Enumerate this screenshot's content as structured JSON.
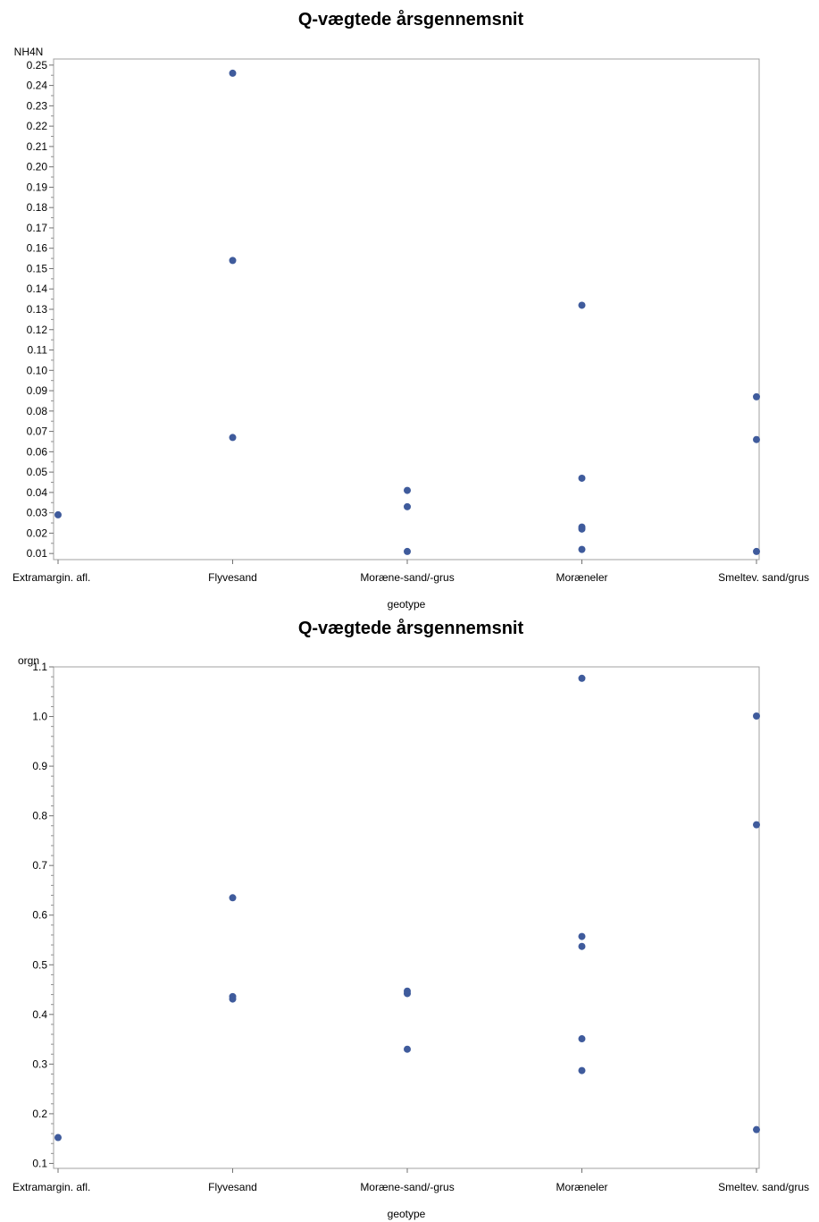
{
  "chart_data": [
    {
      "type": "scatter",
      "title": "Q-vægtede årsgennemsnit",
      "xlabel": "geotype",
      "ylabel": "NH4N",
      "categories": [
        "Extramargin. afl.",
        "Flyvesand",
        "Moræne-sand/-grus",
        "Moræneler",
        "Smeltev. sand/grus"
      ],
      "ylim": [
        0.007,
        0.253
      ],
      "y_ticks": [
        "0.01",
        "0.02",
        "0.03",
        "0.04",
        "0.05",
        "0.06",
        "0.07",
        "0.08",
        "0.09",
        "0.10",
        "0.11",
        "0.12",
        "0.13",
        "0.14",
        "0.15",
        "0.16",
        "0.17",
        "0.18",
        "0.19",
        "0.20",
        "0.21",
        "0.22",
        "0.23",
        "0.24",
        "0.25"
      ],
      "minor_ticks": 1,
      "grid": false,
      "point_color": "#3f5b9c",
      "points": [
        {
          "x": "Extramargin. afl.",
          "y": 0.029
        },
        {
          "x": "Flyvesand",
          "y": 0.246
        },
        {
          "x": "Flyvesand",
          "y": 0.154
        },
        {
          "x": "Flyvesand",
          "y": 0.067
        },
        {
          "x": "Moræne-sand/-grus",
          "y": 0.041
        },
        {
          "x": "Moræne-sand/-grus",
          "y": 0.033
        },
        {
          "x": "Moræne-sand/-grus",
          "y": 0.011
        },
        {
          "x": "Moræneler",
          "y": 0.132
        },
        {
          "x": "Moræneler",
          "y": 0.047
        },
        {
          "x": "Moræneler",
          "y": 0.023
        },
        {
          "x": "Moræneler",
          "y": 0.022
        },
        {
          "x": "Moræneler",
          "y": 0.012
        },
        {
          "x": "Smeltev. sand/grus",
          "y": 0.087
        },
        {
          "x": "Smeltev. sand/grus",
          "y": 0.066
        },
        {
          "x": "Smeltev. sand/grus",
          "y": 0.011
        }
      ]
    },
    {
      "type": "scatter",
      "title": "Q-vægtede årsgennemsnit",
      "xlabel": "geotype",
      "ylabel": "orgn",
      "categories": [
        "Extramargin. afl.",
        "Flyvesand",
        "Moræne-sand/-grus",
        "Moræneler",
        "Smeltev. sand/grus"
      ],
      "ylim": [
        0.09,
        1.1
      ],
      "y_ticks": [
        "0.1",
        "0.2",
        "0.3",
        "0.4",
        "0.5",
        "0.6",
        "0.7",
        "0.8",
        "0.9",
        "1.0",
        "1.1"
      ],
      "minor_ticks": 4,
      "grid": false,
      "point_color": "#3f5b9c",
      "points": [
        {
          "x": "Extramargin. afl.",
          "y": 0.152
        },
        {
          "x": "Flyvesand",
          "y": 0.635
        },
        {
          "x": "Flyvesand",
          "y": 0.436
        },
        {
          "x": "Flyvesand",
          "y": 0.431
        },
        {
          "x": "Moræne-sand/-grus",
          "y": 0.447
        },
        {
          "x": "Moræne-sand/-grus",
          "y": 0.442
        },
        {
          "x": "Moræne-sand/-grus",
          "y": 0.33
        },
        {
          "x": "Moræneler",
          "y": 1.077
        },
        {
          "x": "Moræneler",
          "y": 0.557
        },
        {
          "x": "Moræneler",
          "y": 0.537
        },
        {
          "x": "Moræneler",
          "y": 0.351
        },
        {
          "x": "Moræneler",
          "y": 0.287
        },
        {
          "x": "Smeltev. sand/grus",
          "y": 1.001
        },
        {
          "x": "Smeltev. sand/grus",
          "y": 0.782
        },
        {
          "x": "Smeltev. sand/grus",
          "y": 0.168
        }
      ]
    }
  ]
}
